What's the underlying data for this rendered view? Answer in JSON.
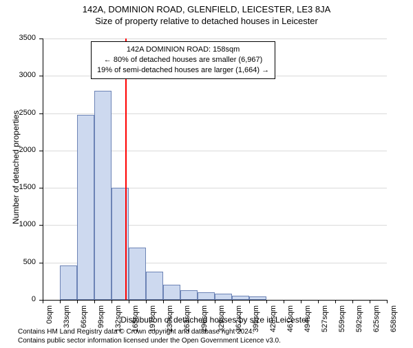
{
  "title": "142A, DOMINION ROAD, GLENFIELD, LEICESTER, LE3 8JA",
  "subtitle": "Size of property relative to detached houses in Leicester",
  "chart": {
    "type": "histogram",
    "ylabel": "Number of detached properties",
    "xlabel": "Distribution of detached houses by size in Leicester",
    "ylim": [
      0,
      3500
    ],
    "ytick_step": 500,
    "yticks": [
      0,
      500,
      1000,
      1500,
      2000,
      2500,
      3000,
      3500
    ],
    "xticks": [
      "0sqm",
      "33sqm",
      "66sqm",
      "99sqm",
      "132sqm",
      "165sqm",
      "197sqm",
      "230sqm",
      "263sqm",
      "296sqm",
      "329sqm",
      "362sqm",
      "395sqm",
      "428sqm",
      "461sqm",
      "494sqm",
      "527sqm",
      "559sqm",
      "592sqm",
      "625sqm",
      "658sqm"
    ],
    "bar_values": [
      0,
      460,
      2480,
      2800,
      1500,
      700,
      380,
      200,
      130,
      100,
      80,
      60,
      50,
      0,
      0,
      0,
      0,
      0,
      0,
      0
    ],
    "bar_color": "#cdd9ef",
    "bar_border": "#6c83b5",
    "grid_color": "#d9d9d9",
    "axis_color": "#000000",
    "background_color": "#ffffff",
    "marker": {
      "bin_index_left_edge": 4,
      "fraction_into_bin": 0.79,
      "color": "#ff0000"
    }
  },
  "annotation": {
    "line1": "142A DOMINION ROAD: 158sqm",
    "line2": "← 80% of detached houses are smaller (6,967)",
    "line3": "19% of semi-detached houses are larger (1,664) →"
  },
  "footer": {
    "line1": "Contains HM Land Registry data © Crown copyright and database right 2024.",
    "line2": "Contains public sector information licensed under the Open Government Licence v3.0."
  }
}
